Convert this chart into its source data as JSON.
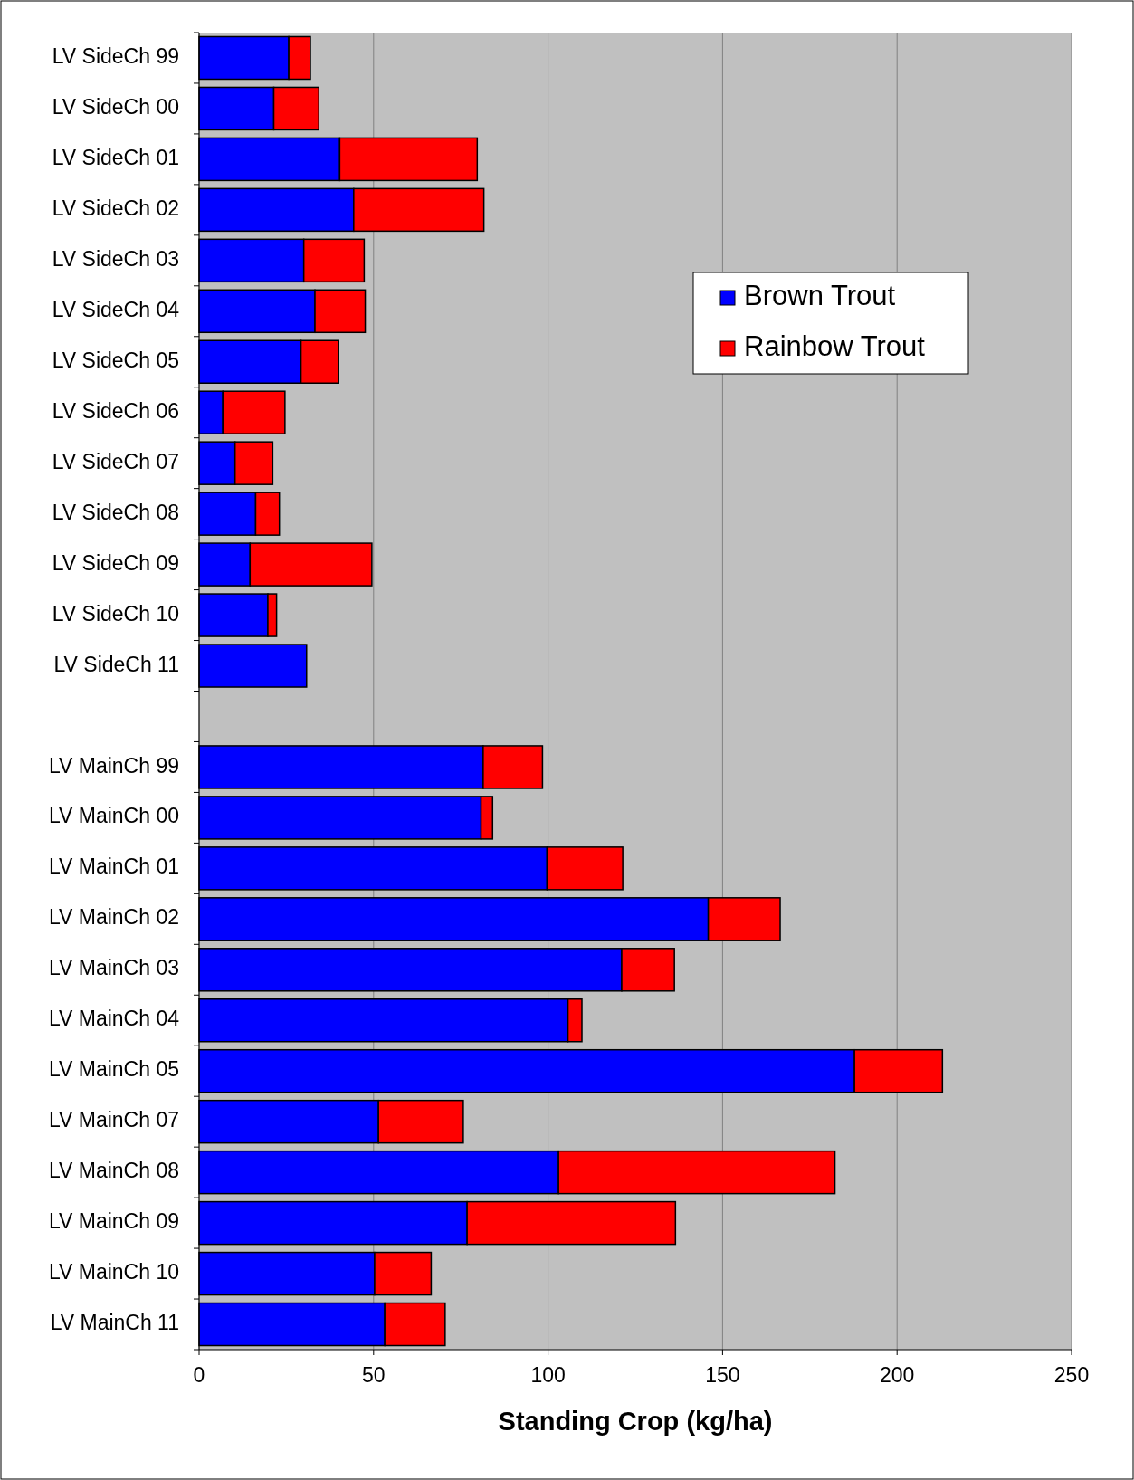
{
  "chart_data": {
    "type": "bar",
    "orientation": "horizontal",
    "stacked": true,
    "xlabel": "Standing Crop (kg/ha)",
    "categories": [
      "LV SideCh 99",
      "LV SideCh 00",
      "LV SideCh 01",
      "LV SideCh 02",
      "LV SideCh 03",
      "LV SideCh 04",
      "LV SideCh 05",
      "LV SideCh 06",
      "LV SideCh 07",
      "LV SideCh 08",
      "LV SideCh 09",
      "LV SideCh 10",
      "LV SideCh 11",
      null,
      "LV MainCh 99",
      "LV MainCh 00",
      "LV MainCh 01",
      "LV MainCh 02",
      "LV MainCh 03",
      "LV MainCh 04",
      "LV MainCh 05",
      "LV MainCh 07",
      "LV MainCh 08",
      "LV MainCh 09",
      "LV MainCh 10",
      "LV MainCh 11"
    ],
    "series": [
      {
        "name": "Brown Trout",
        "color": "#0000ff",
        "values": [
          25.7,
          21.4,
          40.3,
          44.3,
          30,
          33.2,
          29.2,
          6.8,
          10.3,
          16.2,
          14.6,
          19.7,
          30.8,
          null,
          81.4,
          80.8,
          99.7,
          145.9,
          121.1,
          105.7,
          187.8,
          51.4,
          103,
          76.8,
          50.3,
          53.2
        ]
      },
      {
        "name": "Rainbow Trout",
        "color": "#ff0000",
        "values": [
          6.2,
          12.9,
          39.4,
          37.3,
          17.3,
          14.4,
          10.8,
          17.8,
          10.8,
          6.8,
          34.9,
          2.5,
          0,
          null,
          17,
          3.3,
          21.7,
          20.6,
          15.1,
          4,
          25.2,
          24.3,
          79.2,
          59.7,
          16.2,
          17.3
        ]
      }
    ],
    "xlim": [
      0,
      250
    ],
    "xticks": [
      0,
      50,
      100,
      150,
      200,
      250
    ],
    "grid": "x",
    "legend": "top right"
  }
}
